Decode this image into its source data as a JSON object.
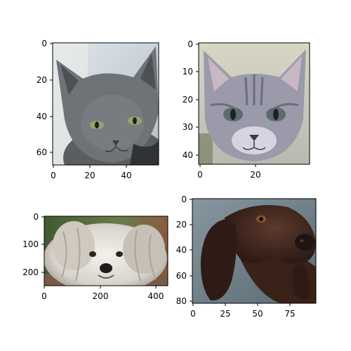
{
  "panels": [
    {
      "subject": "grey cat",
      "x_ticks": [
        "0",
        "20",
        "40"
      ],
      "y_ticks": [
        "0",
        "20",
        "40",
        "60"
      ],
      "colors": {
        "background": "#c9d3db",
        "fur": "#6f7378",
        "fur_dark": "#4d5156",
        "eye": "#9da26a"
      }
    },
    {
      "subject": "grey tabby kitten",
      "x_ticks": [
        "0",
        "20"
      ],
      "y_ticks": [
        "0",
        "10",
        "20",
        "30",
        "40"
      ],
      "colors": {
        "background": "#c8c9b8",
        "fur": "#9b9aab",
        "fur_dark": "#6e6d80",
        "eye": "#5e6b6e"
      }
    },
    {
      "subject": "white fluffy dog",
      "x_ticks": [
        "0",
        "200",
        "400"
      ],
      "y_ticks": [
        "0",
        "100",
        "200"
      ],
      "colors": {
        "background": "#4f6a3a",
        "fur": "#e6e2dc",
        "fur_dark": "#a9a49e",
        "nose": "#1d1b1b"
      }
    },
    {
      "subject": "brown pointer dog",
      "x_ticks": [
        "0",
        "25",
        "50",
        "75"
      ],
      "y_ticks": [
        "0",
        "20",
        "40",
        "60",
        "80"
      ],
      "colors": {
        "background": "#6e7f8a",
        "fur": "#4a2d22",
        "fur_dark": "#2e1b15",
        "nose": "#201412"
      }
    }
  ]
}
